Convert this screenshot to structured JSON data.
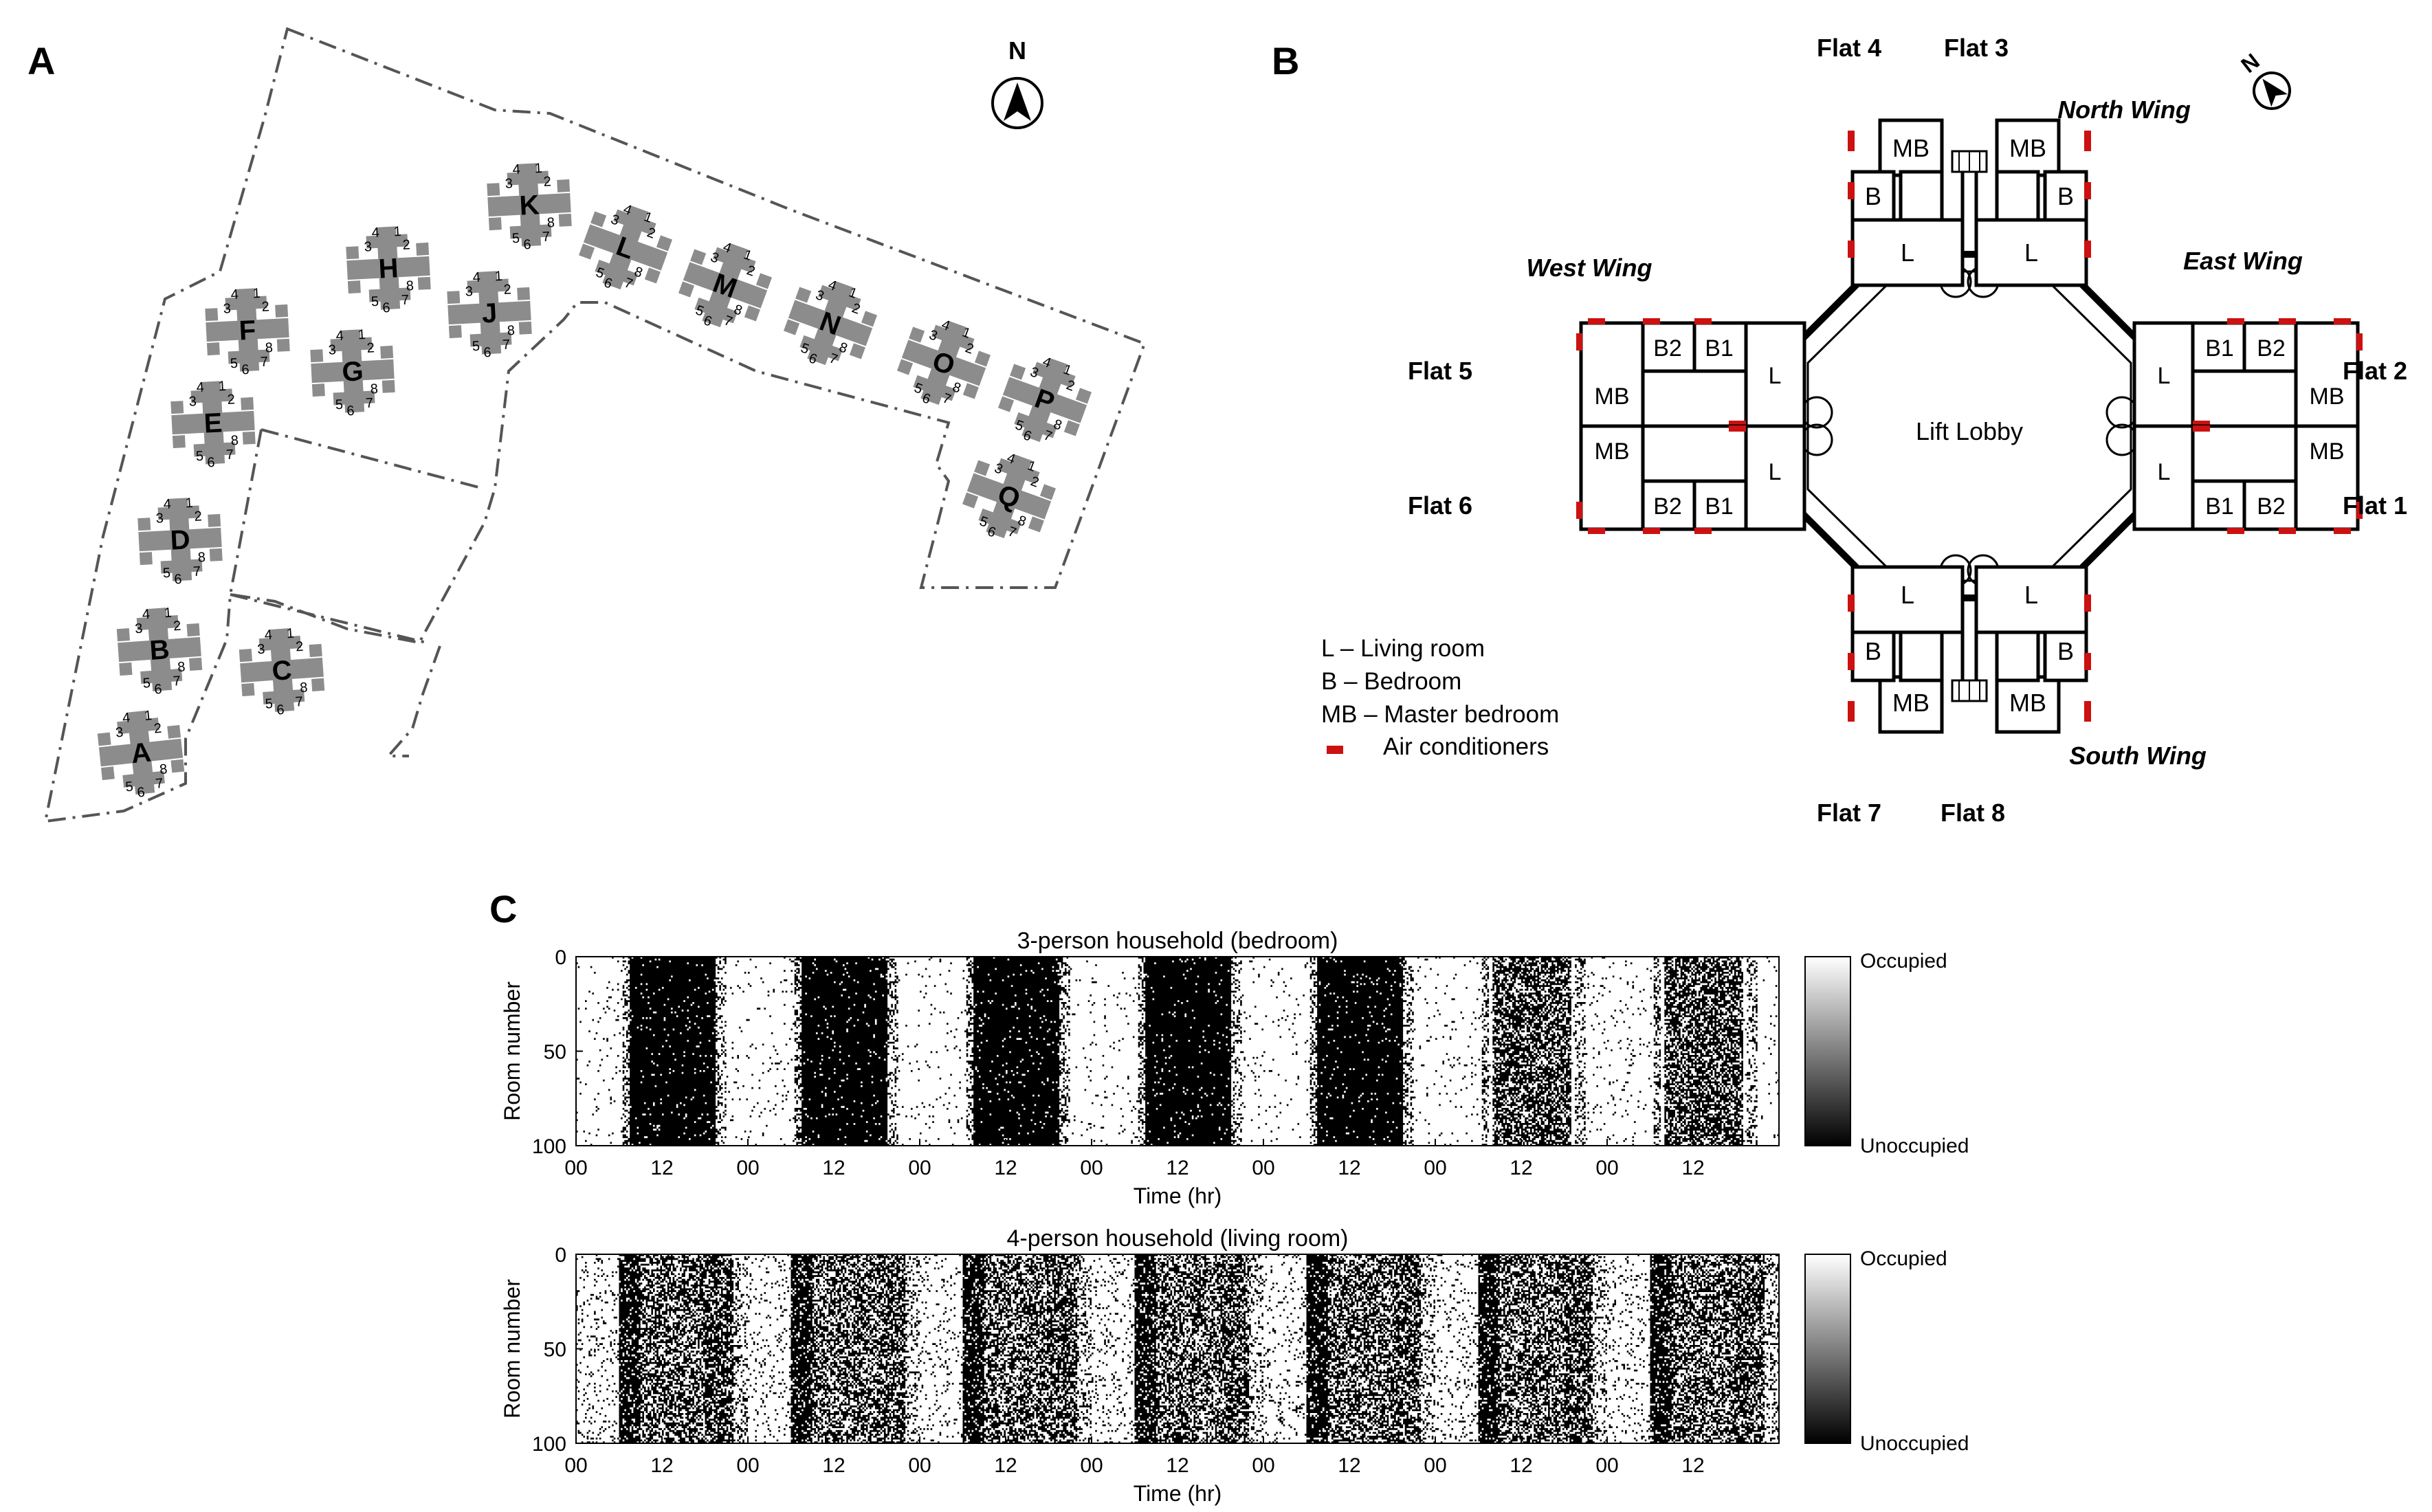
{
  "panels": {
    "a": "A",
    "b": "B",
    "c": "C"
  },
  "site_map": {
    "north": "N",
    "blocks": [
      {
        "letter": "A",
        "flats": [
          "1",
          "2",
          "3",
          "4",
          "5",
          "6",
          "7",
          "8"
        ]
      },
      {
        "letter": "B",
        "flats": [
          "1",
          "2",
          "3",
          "4",
          "5",
          "6",
          "7",
          "8"
        ]
      },
      {
        "letter": "C",
        "flats": [
          "1",
          "2",
          "3",
          "4",
          "5",
          "6",
          "7",
          "8"
        ]
      },
      {
        "letter": "D",
        "flats": [
          "1",
          "2",
          "3",
          "4",
          "5",
          "6",
          "7",
          "8"
        ]
      },
      {
        "letter": "E",
        "flats": [
          "1",
          "2",
          "3",
          "4",
          "5",
          "6",
          "7",
          "8"
        ]
      },
      {
        "letter": "F",
        "flats": [
          "1",
          "2",
          "3",
          "4",
          "5",
          "6",
          "7",
          "8"
        ]
      },
      {
        "letter": "G",
        "flats": [
          "1",
          "2",
          "3",
          "4",
          "5",
          "6",
          "7",
          "8"
        ]
      },
      {
        "letter": "H",
        "flats": [
          "1",
          "2",
          "3",
          "4",
          "5",
          "6",
          "7",
          "8"
        ]
      },
      {
        "letter": "J",
        "flats": [
          "1",
          "2",
          "3",
          "4",
          "5",
          "6",
          "7",
          "8"
        ]
      },
      {
        "letter": "K",
        "flats": [
          "1",
          "2",
          "3",
          "4",
          "5",
          "6",
          "7",
          "8"
        ]
      },
      {
        "letter": "L",
        "flats": [
          "1",
          "2",
          "3",
          "4",
          "5",
          "6",
          "7",
          "8"
        ]
      },
      {
        "letter": "M",
        "flats": [
          "1",
          "2",
          "3",
          "4",
          "5",
          "6",
          "7",
          "8"
        ]
      },
      {
        "letter": "N",
        "flats": [
          "1",
          "2",
          "3",
          "4",
          "5",
          "6",
          "7",
          "8"
        ]
      },
      {
        "letter": "O",
        "flats": [
          "1",
          "2",
          "3",
          "4",
          "5",
          "6",
          "7",
          "8"
        ]
      },
      {
        "letter": "P",
        "flats": [
          "1",
          "2",
          "3",
          "4",
          "5",
          "6",
          "7",
          "8"
        ]
      },
      {
        "letter": "Q",
        "flats": [
          "1",
          "2",
          "3",
          "4",
          "5",
          "6",
          "7",
          "8"
        ]
      }
    ]
  },
  "floor_plan": {
    "north": "N",
    "flats": {
      "f1": "Flat 1",
      "f2": "Flat 2",
      "f3": "Flat 3",
      "f4": "Flat 4",
      "f5": "Flat 5",
      "f6": "Flat 6",
      "f7": "Flat 7",
      "f8": "Flat 8"
    },
    "wings": {
      "north": "North Wing",
      "east": "East Wing",
      "south": "South Wing",
      "west": "West Wing"
    },
    "lobby": "Lift Lobby",
    "rooms": {
      "living": "L",
      "bedroom": "B",
      "master": "MB",
      "bedroom1": "B1",
      "bedroom2": "B2"
    },
    "legend": [
      {
        "key": "L",
        "text": "L – Living room"
      },
      {
        "key": "B",
        "text": "B – Bedroom"
      },
      {
        "key": "MB",
        "text": "MB – Master bedroom"
      },
      {
        "key": "AC",
        "text": "Air conditioners",
        "color": "#cc1111"
      }
    ]
  },
  "chart_data": [
    {
      "type": "heatmap",
      "title": "3-person household (bedroom)",
      "xlabel": "Time (hr)",
      "ylabel": "Room number",
      "xticks": [
        "00",
        "12",
        "00",
        "12",
        "00",
        "12",
        "00",
        "12",
        "00",
        "12",
        "00",
        "12",
        "00",
        "12"
      ],
      "yticks": [
        "0",
        "50",
        "100"
      ],
      "ylim": [
        0,
        100
      ],
      "days": 7,
      "colorbar": {
        "top": "Occupied",
        "bottom": "Unoccupied"
      },
      "pattern": "mostly occupied at night, unoccupied roughly 07-20 on weekdays; more mixed on the last two days"
    },
    {
      "type": "heatmap",
      "title": "4-person household (living room)",
      "xlabel": "Time (hr)",
      "ylabel": "Room number",
      "xticks": [
        "00",
        "12",
        "00",
        "12",
        "00",
        "12",
        "00",
        "12",
        "00",
        "12",
        "00",
        "12",
        "00",
        "12"
      ],
      "yticks": [
        "0",
        "50",
        "100"
      ],
      "ylim": [
        0,
        100
      ],
      "days": 7,
      "colorbar": {
        "top": "Occupied",
        "bottom": "Unoccupied"
      },
      "pattern": "mixed occupancy throughout the day, mostly unoccupied late night"
    }
  ]
}
